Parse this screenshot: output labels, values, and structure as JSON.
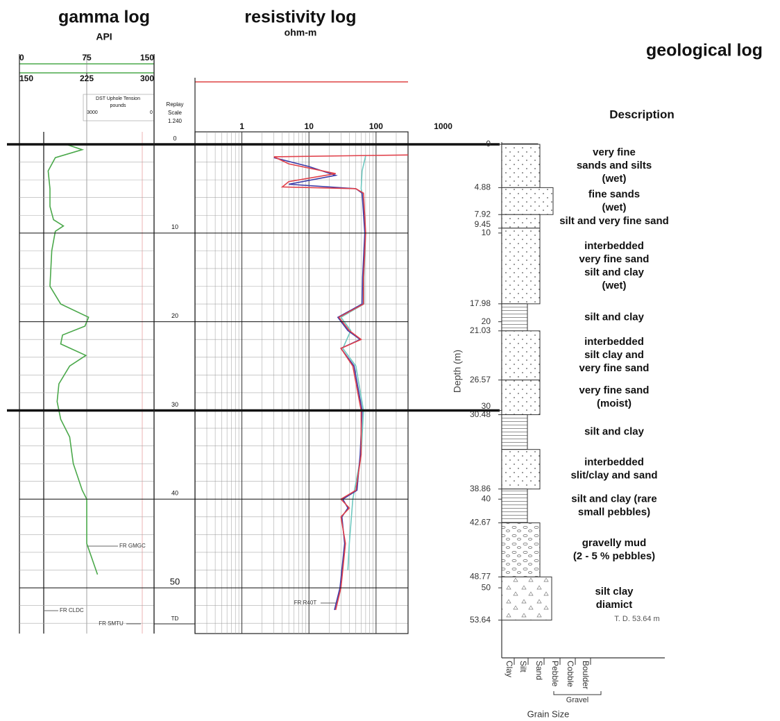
{
  "gamma_log": {
    "title": "gamma log",
    "unit": "API",
    "xlim": [
      0,
      150
    ],
    "xticks": [
      0,
      75,
      150
    ],
    "xlim2": [
      150,
      300
    ],
    "xticks2": [
      150,
      225,
      300
    ],
    "tension_label": "DST Uphole Tension",
    "tension_unit": "pounds",
    "tension_ticks": [
      3000,
      0
    ],
    "color": "#4aa84a",
    "curve": {
      "depth": [
        0,
        0.6,
        1.5,
        3,
        5,
        7,
        8.5,
        9.2,
        9.8,
        12,
        16,
        18,
        19.5,
        20.5,
        21.5,
        22.5,
        23.8,
        25,
        27,
        29,
        31,
        33,
        36,
        39,
        40,
        45,
        48.5
      ],
      "values": [
        52,
        70,
        40,
        32,
        34,
        34,
        38,
        49,
        40,
        36,
        34,
        46,
        77,
        73,
        48,
        46,
        74,
        56,
        44,
        42,
        46,
        56,
        60,
        70,
        75,
        75,
        87
      ]
    },
    "annotations": [
      "FR GMGC",
      "FR CLDC",
      "FR SMTU"
    ]
  },
  "depth_track": {
    "title": "Replay",
    "subtitle": "Scale",
    "scale": "1.240",
    "depth_lim": [
      0,
      55
    ],
    "depth_ticks": [
      0,
      10,
      20,
      30,
      40,
      50
    ],
    "td_label": "TD"
  },
  "resistivity_log": {
    "title": "resistivity log",
    "unit": "ohm-m",
    "log_scale": true,
    "xlim": [
      0.2,
      300
    ],
    "xticks": [
      1,
      10,
      100,
      1000
    ],
    "curves": [
      {
        "color": "#e0404a",
        "depth": [
          1.2,
          1.4,
          2.2,
          3.3,
          4.2,
          4.8,
          5.0,
          5.5,
          10,
          15,
          18,
          19.5,
          21,
          22,
          23,
          25,
          30,
          35,
          39,
          40,
          41,
          42,
          45,
          50,
          52.5
        ],
        "values": [
          300,
          3,
          5,
          25,
          5,
          4,
          50,
          65,
          70,
          65,
          65,
          28,
          40,
          60,
          30,
          45,
          60,
          60,
          50,
          30,
          40,
          30,
          35,
          30,
          25
        ]
      },
      {
        "color": "#3a3aa8",
        "depth": [
          1.5,
          2.5,
          3.5,
          4.5,
          5.0,
          5.5,
          10,
          15,
          18,
          19.5,
          21,
          22,
          23,
          25,
          30,
          35,
          39,
          40,
          41,
          42,
          45,
          50,
          52.5
        ],
        "values": [
          3,
          10,
          25,
          5,
          50,
          62,
          68,
          63,
          62,
          27,
          38,
          58,
          30,
          47,
          62,
          58,
          52,
          32,
          38,
          31,
          34,
          29,
          24
        ]
      },
      {
        "color": "#6fc8c0",
        "depth": [
          1.3,
          3,
          5,
          5.5,
          10,
          15,
          18,
          19.5,
          21,
          23,
          25,
          30,
          35,
          40,
          45,
          48
        ],
        "values": [
          70,
          62,
          60,
          62,
          70,
          66,
          66,
          30,
          42,
          32,
          50,
          65,
          60,
          45,
          40,
          38
        ]
      }
    ],
    "annotation": "FR R40T"
  },
  "geological_log": {
    "title": "geological log",
    "description_header": "Description",
    "axis_label": "Depth (m)",
    "depth_ticks": [
      0,
      4.88,
      7.92,
      9.45,
      10,
      17.98,
      20,
      21.03,
      26.57,
      30,
      30.48,
      38.86,
      40,
      42.67,
      48.77,
      50,
      53.64
    ],
    "layers": [
      {
        "top": 0,
        "bottom": 4.88,
        "description": [
          "very fine",
          "sands and silts",
          "(wet)"
        ]
      },
      {
        "top": 4.88,
        "bottom": 7.92,
        "description": [
          "fine sands",
          "(wet)"
        ]
      },
      {
        "top": 7.92,
        "bottom": 9.45,
        "description": [
          "silt and very fine sand"
        ]
      },
      {
        "top": 9.45,
        "bottom": 17.98,
        "description": [
          "interbedded",
          "very fine sand",
          "silt and clay",
          "(wet)"
        ]
      },
      {
        "top": 17.98,
        "bottom": 21.03,
        "description": [
          "silt and clay"
        ]
      },
      {
        "top": 21.03,
        "bottom": 26.57,
        "description": [
          "interbedded",
          "silt clay and",
          "very fine sand"
        ]
      },
      {
        "top": 26.57,
        "bottom": 30.48,
        "description": [
          "very fine sand",
          "(moist)"
        ]
      },
      {
        "top": 30.48,
        "bottom": 34.4,
        "description": [
          "silt and clay"
        ]
      },
      {
        "top": 34.4,
        "bottom": 38.86,
        "description": [
          "interbedded",
          "slit/clay and sand"
        ]
      },
      {
        "top": 38.86,
        "bottom": 42.67,
        "description": [
          "silt and clay (rare",
          "small pebbles)"
        ]
      },
      {
        "top": 42.67,
        "bottom": 48.77,
        "description": [
          "gravelly mud",
          "(2 - 5 % pebbles)"
        ]
      },
      {
        "top": 48.77,
        "bottom": 53.64,
        "description": [
          "silt clay",
          "diamict"
        ]
      }
    ],
    "td_note": "T. D. 53.64 m",
    "grain_sizes": [
      "Clay",
      "Silt",
      "Sand",
      "Pebble",
      "Cobble",
      "Boulder"
    ],
    "gravel_label": "Gravel",
    "x_label": "Grain Size"
  }
}
